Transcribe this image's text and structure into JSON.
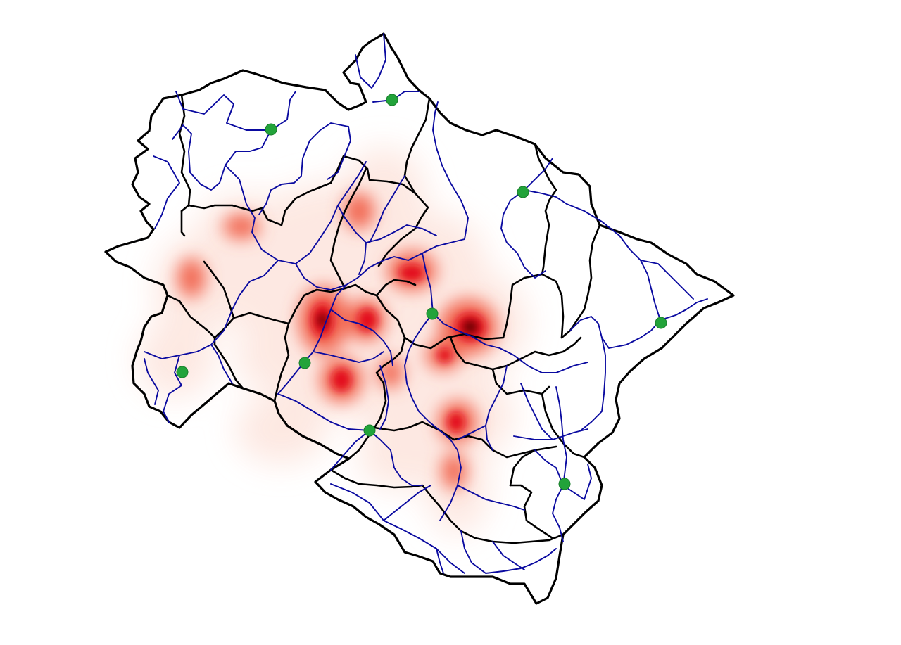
{
  "map": {
    "colors": {
      "background": "#ffffff",
      "boundary": "#000000",
      "roads": "#0a0aa0",
      "heat_low": "#fde6df",
      "heat_mid": "#f26b55",
      "heat_high": "#e3101a",
      "heat_peak": "#5e0000",
      "marker": "#22a33a",
      "marker_stroke": "#1a7f2c"
    },
    "layers": [
      "density-heatmap",
      "district-boundaries",
      "road-network",
      "point-markers"
    ],
    "marker_icon": "green-circle"
  }
}
